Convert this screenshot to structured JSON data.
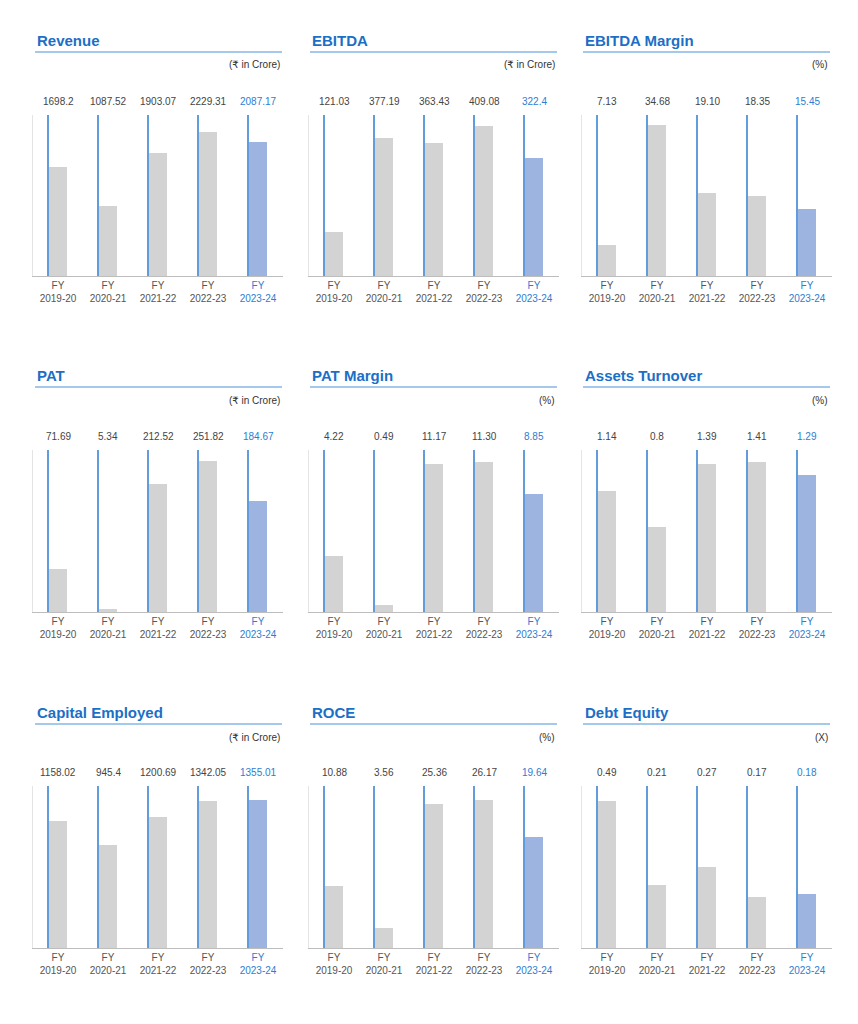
{
  "chart_data": [
    {
      "type": "bar",
      "title": "Revenue",
      "subtitle": "(₹ in Crore)",
      "categories": [
        "FY 2019-20",
        "FY 2020-21",
        "FY 2021-22",
        "FY 2022-23",
        "FY 2023-24"
      ],
      "values": [
        1698.2,
        1087.52,
        1903.07,
        2229.31,
        2087.17
      ],
      "colors": [
        "#d3d3d3",
        "#d3d3d3",
        "#d3d3d3",
        "#d3d3d3",
        "#9db3e0"
      ],
      "ylim": [
        0,
        2500
      ],
      "grid": false,
      "data_labels": true,
      "tick_labels": "x"
    },
    {
      "type": "bar",
      "title": "EBITDA",
      "subtitle": "(₹ in Crore)",
      "categories": [
        "FY 2019-20",
        "FY 2020-21",
        "FY 2021-22",
        "FY 2022-23",
        "FY 2023-24"
      ],
      "values": [
        121.03,
        377.19,
        363.43,
        409.08,
        322.4
      ],
      "colors": [
        "#d3d3d3",
        "#d3d3d3",
        "#d3d3d3",
        "#d3d3d3",
        "#9db3e0"
      ],
      "ylim": [
        0,
        440
      ],
      "grid": false,
      "data_labels": true,
      "tick_labels": "x"
    },
    {
      "type": "bar",
      "title": "EBITDA Margin",
      "subtitle": "(%)",
      "categories": [
        "FY 2019-20",
        "FY 2020-21",
        "FY 2021-22",
        "FY 2022-23",
        "FY 2023-24"
      ],
      "values": [
        7.13,
        34.68,
        19.1,
        18.35,
        15.45
      ],
      "value_labels": [
        "7.13",
        "34.68",
        "19.10",
        "18.35",
        "15.45"
      ],
      "colors": [
        "#d3d3d3",
        "#d3d3d3",
        "#d3d3d3",
        "#d3d3d3",
        "#9db3e0"
      ],
      "ylim": [
        0,
        37
      ],
      "grid": false,
      "data_labels": true,
      "tick_labels": "x"
    },
    {
      "type": "bar",
      "title": "PAT",
      "subtitle": "(₹ in Crore)",
      "categories": [
        "FY 2019-20",
        "FY 2020-21",
        "FY 2021-22",
        "FY 2022-23",
        "FY 2023-24"
      ],
      "values": [
        71.69,
        5.34,
        212.52,
        251.82,
        184.67
      ],
      "colors": [
        "#d3d3d3",
        "#d3d3d3",
        "#d3d3d3",
        "#d3d3d3",
        "#9db3e0"
      ],
      "ylim": [
        0,
        270
      ],
      "grid": false,
      "data_labels": true,
      "tick_labels": "x"
    },
    {
      "type": "bar",
      "title": "PAT Margin",
      "subtitle": "(%)",
      "categories": [
        "FY 2019-20",
        "FY 2020-21",
        "FY 2021-22",
        "FY 2022-23",
        "FY 2023-24"
      ],
      "values": [
        4.22,
        0.49,
        11.17,
        11.3,
        8.85
      ],
      "value_labels": [
        "4.22",
        "0.49",
        "11.17",
        "11.30",
        "8.85"
      ],
      "colors": [
        "#d3d3d3",
        "#d3d3d3",
        "#d3d3d3",
        "#d3d3d3",
        "#9db3e0"
      ],
      "ylim": [
        0,
        12.2
      ],
      "grid": false,
      "data_labels": true,
      "tick_labels": "x"
    },
    {
      "type": "bar",
      "title": "Assets Turnover",
      "subtitle": "(%)",
      "categories": [
        "FY 2019-20",
        "FY 2020-21",
        "FY 2021-22",
        "FY 2022-23",
        "FY 2023-24"
      ],
      "values": [
        1.14,
        0.8,
        1.39,
        1.41,
        1.29
      ],
      "colors": [
        "#d3d3d3",
        "#d3d3d3",
        "#d3d3d3",
        "#d3d3d3",
        "#9db3e0"
      ],
      "ylim": [
        0,
        1.52
      ],
      "grid": false,
      "data_labels": true,
      "tick_labels": "x"
    },
    {
      "type": "bar",
      "title": "Capital Employed",
      "subtitle": "(₹ in Crore)",
      "categories": [
        "FY 2019-20",
        "FY 2020-21",
        "FY 2021-22",
        "FY 2022-23",
        "FY 2023-24"
      ],
      "values": [
        1158.02,
        945.4,
        1200.69,
        1342.05,
        1355.01
      ],
      "colors": [
        "#d3d3d3",
        "#d3d3d3",
        "#d3d3d3",
        "#d3d3d3",
        "#9db3e0"
      ],
      "ylim": [
        0,
        1480
      ],
      "grid": false,
      "data_labels": true,
      "tick_labels": "x"
    },
    {
      "type": "bar",
      "title": "ROCE",
      "subtitle": "(%)",
      "categories": [
        "FY 2019-20",
        "FY 2020-21",
        "FY 2021-22",
        "FY 2022-23",
        "FY 2023-24"
      ],
      "values": [
        10.88,
        3.56,
        25.36,
        26.17,
        19.64
      ],
      "colors": [
        "#d3d3d3",
        "#d3d3d3",
        "#d3d3d3",
        "#d3d3d3",
        "#9db3e0"
      ],
      "ylim": [
        0,
        28.6
      ],
      "grid": false,
      "data_labels": true,
      "tick_labels": "x"
    },
    {
      "type": "bar",
      "title": "Debt Equity",
      "subtitle": "(X)",
      "categories": [
        "FY 2019-20",
        "FY 2020-21",
        "FY 2021-22",
        "FY 2022-23",
        "FY 2023-24"
      ],
      "values": [
        0.49,
        0.21,
        0.27,
        0.17,
        0.18
      ],
      "colors": [
        "#d3d3d3",
        "#d3d3d3",
        "#d3d3d3",
        "#d3d3d3",
        "#9db3e0"
      ],
      "ylim": [
        0,
        0.54
      ],
      "grid": false,
      "data_labels": true,
      "tick_labels": "x"
    }
  ]
}
